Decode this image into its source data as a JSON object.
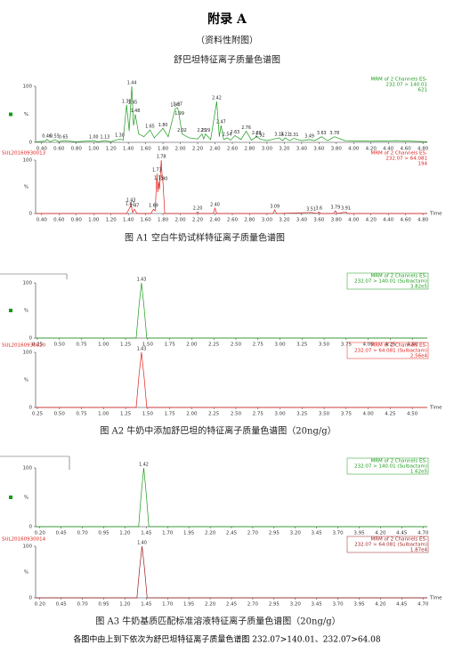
{
  "header": {
    "title": "附录 A",
    "subtitle": "（资料性附图）",
    "heading": "舒巴坦特征离子质量色谱图"
  },
  "figures": [
    {
      "caption": "图 A1  空白牛奶试样特征离子质量色谱图",
      "time_label": "Time",
      "boxed": false,
      "xlim": [
        0.33,
        4.85
      ],
      "xticks": [
        {
          "value": 0.4,
          "label": "0.40"
        },
        {
          "value": 0.6,
          "label": "0.60"
        },
        {
          "value": 0.8,
          "label": "0.80"
        },
        {
          "value": 1.0,
          "label": "1.00"
        },
        {
          "value": 1.2,
          "label": "1.20"
        },
        {
          "value": 1.4,
          "label": "1.40"
        },
        {
          "value": 1.6,
          "label": "1.60"
        },
        {
          "value": 1.8,
          "label": "1.80"
        },
        {
          "value": 2.0,
          "label": "2.00"
        },
        {
          "value": 2.2,
          "label": "2.20"
        },
        {
          "value": 2.4,
          "label": "2.40"
        },
        {
          "value": 2.6,
          "label": "2.60"
        },
        {
          "value": 2.8,
          "label": "2.80"
        },
        {
          "value": 3.0,
          "label": "3.00"
        },
        {
          "value": 3.2,
          "label": "3.20"
        },
        {
          "value": 3.4,
          "label": "3.40"
        },
        {
          "value": 3.6,
          "label": "3.60"
        },
        {
          "value": 3.8,
          "label": "3.80"
        },
        {
          "value": 4.0,
          "label": "4.00"
        },
        {
          "value": 4.2,
          "label": "4.20"
        },
        {
          "value": 4.4,
          "label": "4.40"
        },
        {
          "value": 4.6,
          "label": "4.60"
        },
        {
          "value": 4.8,
          "label": "4.80"
        }
      ],
      "panels": [
        {
          "color": "#1a9a1a",
          "y_label": "%",
          "ylim": [
            0,
            100
          ],
          "yticks": [
            0,
            100
          ],
          "legend": [
            "MRM of 2 Channels ES-",
            "232.07 > 140.01",
            "621"
          ],
          "x": [
            0.33,
            0.44,
            0.46,
            0.5,
            0.55,
            0.6,
            0.65,
            0.8,
            1.0,
            1.05,
            1.13,
            1.2,
            1.3,
            1.34,
            1.38,
            1.41,
            1.44,
            1.45,
            1.46,
            1.48,
            1.52,
            1.58,
            1.65,
            1.7,
            1.8,
            1.86,
            1.94,
            1.97,
            1.99,
            2.02,
            2.1,
            2.2,
            2.25,
            2.27,
            2.29,
            2.35,
            2.42,
            2.45,
            2.47,
            2.5,
            2.54,
            2.58,
            2.63,
            2.7,
            2.76,
            2.82,
            2.88,
            2.92,
            3.0,
            3.14,
            3.18,
            3.21,
            3.26,
            3.31,
            3.4,
            3.49,
            3.55,
            3.63,
            3.7,
            3.78,
            3.9,
            4.2,
            4.5,
            4.85
          ],
          "values": [
            1,
            2,
            5,
            1,
            5,
            1,
            3,
            1,
            3,
            1,
            3,
            1,
            6,
            4,
            67,
            20,
            100,
            65,
            30,
            50,
            15,
            10,
            22,
            8,
            25,
            10,
            60,
            62,
            45,
            15,
            8,
            6,
            15,
            6,
            15,
            5,
            73,
            10,
            30,
            5,
            8,
            4,
            12,
            5,
            20,
            4,
            10,
            6,
            3,
            8,
            3,
            8,
            3,
            7,
            3,
            5,
            3,
            10,
            3,
            10,
            3,
            2,
            3,
            1
          ],
          "peak_labels": [
            0.46,
            0.55,
            0.65,
            {
              "value": 1.0,
              "label": "1.00"
            },
            1.13,
            {
              "value": 1.3,
              "label": "1.30"
            },
            1.38,
            1.44,
            1.45,
            1.48,
            1.65,
            {
              "value": 1.8,
              "label": "1.80"
            },
            1.94,
            1.97,
            1.99,
            2.02,
            2.25,
            2.29,
            2.42,
            2.47,
            2.54,
            2.63,
            2.76,
            2.88,
            2.92,
            3.14,
            3.21,
            3.31,
            3.49,
            3.63,
            3.78
          ]
        },
        {
          "color": "#e0201c",
          "sample": "SUL20160930013",
          "y_label": "%",
          "ylim": [
            0,
            100
          ],
          "yticks": [
            0,
            100
          ],
          "legend": [
            "MRM of 2 Channels ES-",
            "232.07 > 64.081",
            "194"
          ],
          "x": [
            0.33,
            1.38,
            1.42,
            1.43,
            1.45,
            1.47,
            1.5,
            1.66,
            1.69,
            1.71,
            1.73,
            1.74,
            1.75,
            1.76,
            1.78,
            1.79,
            1.8,
            1.82,
            2.18,
            2.2,
            2.22,
            2.38,
            2.4,
            2.42,
            3.07,
            3.09,
            3.11,
            3.51,
            3.58,
            3.6,
            3.62,
            3.77,
            3.79,
            3.81,
            3.91,
            3.93,
            4.85
          ],
          "values": [
            0,
            0,
            12,
            18,
            2,
            8,
            0,
            0,
            8,
            5,
            75,
            40,
            60,
            45,
            100,
            70,
            58,
            0,
            0,
            3,
            0,
            0,
            10,
            0,
            0,
            7,
            0,
            2,
            0,
            3,
            0,
            0,
            5,
            0,
            3,
            0,
            0
          ],
          "peak_labels": [
            1.42,
            1.43,
            1.47,
            1.69,
            1.73,
            1.75,
            1.78,
            {
              "value": 1.8,
              "label": "1.80"
            },
            {
              "value": 2.2,
              "label": "2.20"
            },
            {
              "value": 2.4,
              "label": "2.40"
            },
            3.09,
            3.51,
            3.6,
            3.79,
            3.91
          ]
        }
      ]
    },
    {
      "caption": "图 A2  牛奶中添加舒巴坦的特征离子质量色谱图（20ng/g）",
      "time_label": "Time",
      "boxed": true,
      "xlim": [
        0.23,
        4.67
      ],
      "xticks": [
        0.25,
        {
          "value": 0.5,
          "label": "0.50"
        },
        0.75,
        {
          "value": 1.0,
          "label": "1.00"
        },
        1.25,
        {
          "value": 1.5,
          "label": "1.50"
        },
        1.75,
        {
          "value": 2.0,
          "label": "2.00"
        },
        2.25,
        {
          "value": 2.5,
          "label": "2.50"
        },
        2.75,
        {
          "value": 3.0,
          "label": "3.00"
        },
        3.25,
        {
          "value": 3.5,
          "label": "3.50"
        },
        3.75,
        {
          "value": 4.0,
          "label": "4.00"
        },
        4.25,
        {
          "value": 4.5,
          "label": "4.50"
        }
      ],
      "panels": [
        {
          "color": "#1a9a1a",
          "y_label": "%",
          "ylim": [
            0,
            100
          ],
          "yticks": [
            0,
            100
          ],
          "legend": [
            "MRM of 2 Channels ES-",
            "232.07 > 140.01 (Sulbactam)",
            "3.82e5"
          ],
          "x": [
            0.23,
            1.37,
            1.4,
            1.43,
            1.46,
            1.49,
            4.67
          ],
          "values": [
            0,
            0,
            55,
            100,
            55,
            0,
            0
          ],
          "peak_labels": [
            1.43
          ]
        },
        {
          "color": "#e0201c",
          "sample": "SUL20160930020",
          "y_label": "%",
          "ylim": [
            0,
            100
          ],
          "yticks": [
            0,
            100
          ],
          "legend": [
            "MRM of 2 Channels ES-",
            "232.07 > 64.081 (Sulbactam)",
            "2.56e4"
          ],
          "x": [
            0.23,
            1.37,
            1.4,
            1.43,
            1.46,
            1.49,
            4.67
          ],
          "values": [
            0,
            0,
            55,
            100,
            55,
            0,
            0
          ],
          "peak_labels": [
            1.43
          ]
        }
      ]
    },
    {
      "caption": "图 A3  牛奶基质匹配标准溶液特征离子质量色谱图（20ng/g）",
      "time_label": "Time",
      "boxed": true,
      "xlim": [
        0.15,
        4.75
      ],
      "xticks": [
        {
          "value": 0.2,
          "label": "0.20"
        },
        0.45,
        {
          "value": 0.7,
          "label": "0.70"
        },
        0.95,
        {
          "value": 1.2,
          "label": "1.20"
        },
        1.45,
        {
          "value": 1.7,
          "label": "1.70"
        },
        1.95,
        {
          "value": 2.2,
          "label": "2.20"
        },
        2.45,
        {
          "value": 2.7,
          "label": "2.70"
        },
        2.95,
        {
          "value": 3.2,
          "label": "3.20"
        },
        3.45,
        {
          "value": 3.7,
          "label": "3.70"
        },
        3.95,
        {
          "value": 4.2,
          "label": "4.20"
        },
        4.45,
        {
          "value": 4.7,
          "label": "4.70"
        }
      ],
      "panels": [
        {
          "color": "#1a9a1a",
          "y_label": "%",
          "ylim": [
            0,
            100
          ],
          "yticks": [
            0,
            100
          ],
          "legend": [
            "MRM of 2 Channels ES-",
            "232.07 > 140.01 (Sulbactam)",
            "1.62e5"
          ],
          "x": [
            0.15,
            1.36,
            1.39,
            1.42,
            1.45,
            1.48,
            4.75
          ],
          "values": [
            0,
            0,
            55,
            100,
            55,
            0,
            0
          ],
          "peak_labels": [
            1.42
          ]
        },
        {
          "color": "#9b1c1c",
          "sample": "SUL20160930014",
          "y_label": "%",
          "ylim": [
            0,
            100
          ],
          "yticks": [
            0,
            100
          ],
          "legend": [
            "MRM of 2 Channels ES-",
            "232.07 > 64.081 (Sulbactam)",
            "1.87e4"
          ],
          "x": [
            0.15,
            1.34,
            1.37,
            1.4,
            1.43,
            1.46,
            4.75
          ],
          "values": [
            0,
            0,
            55,
            100,
            55,
            0,
            0
          ],
          "peak_labels": [
            {
              "value": 1.4,
              "label": "1.40"
            }
          ]
        }
      ]
    }
  ],
  "footnote": "各图中由上到下依次为舒巴坦特征离子质量色谱图 232.07>140.01、232.07>64.08"
}
